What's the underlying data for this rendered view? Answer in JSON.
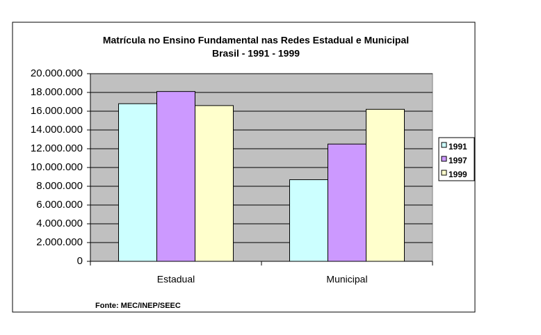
{
  "chart_data": {
    "type": "bar",
    "title": "Matrícula no Ensino Fundamental nas Redes Estadual e Municipal",
    "subtitle": "Brasil - 1991 - 1999",
    "source": "Fonte: MEC/INEP/SEEC",
    "categories": [
      "Estadual",
      "Municipal"
    ],
    "series": [
      {
        "name": "1991",
        "color": "#ccffff",
        "values": [
          16800000,
          8700000
        ]
      },
      {
        "name": "1997",
        "color": "#cc99ff",
        "values": [
          18100000,
          12500000
        ]
      },
      {
        "name": "1999",
        "color": "#ffffcc",
        "values": [
          16600000,
          16200000
        ]
      }
    ],
    "ylim": [
      0,
      20000000
    ],
    "yticks": [
      0,
      {
        "value": 2000000,
        "label": "2.000.000"
      },
      {
        "value": 4000000,
        "label": "4.000.000"
      },
      {
        "value": 6000000,
        "label": "6.000.000"
      },
      {
        "value": 8000000,
        "label": "8.000.000"
      },
      {
        "value": 10000000,
        "label": "10.000.000"
      },
      {
        "value": 12000000,
        "label": "12.000.000"
      },
      {
        "value": 14000000,
        "label": "14.000.000"
      },
      {
        "value": 16000000,
        "label": "16.000.000"
      },
      {
        "value": 18000000,
        "label": "18.000.000"
      },
      {
        "value": 20000000,
        "label": "20.000.000"
      }
    ],
    "grid": true,
    "legend": "right"
  }
}
